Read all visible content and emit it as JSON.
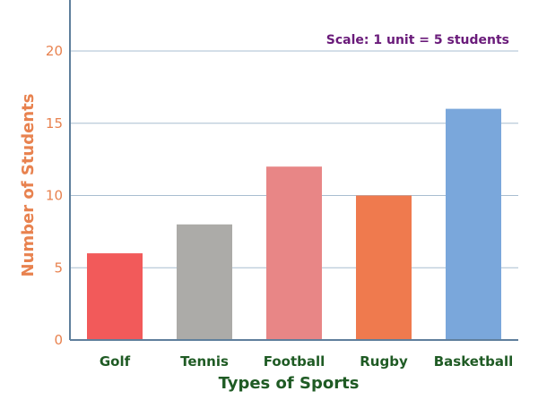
{
  "chart_data": {
    "type": "bar",
    "categories": [
      "Golf",
      "Tennis",
      "Football",
      "Rugby",
      "Basketball"
    ],
    "values": [
      6,
      8,
      12,
      10,
      16
    ],
    "bar_colors": [
      "#f25a5a",
      "#acaba8",
      "#e88686",
      "#ef7a4e",
      "#7aa7db"
    ],
    "xlabel": "Types of Sports",
    "ylabel": "Number of Students",
    "ylim": [
      0,
      20
    ],
    "yticks": [
      0,
      5,
      10,
      15,
      20
    ],
    "grid": true,
    "annotation": "Scale: 1 unit = 5 students"
  },
  "colors": {
    "axis": "#5f7f9c",
    "grid": "#a8bdd0",
    "y_text": "#e8824f",
    "x_text": "#1f5b24",
    "note_text": "#6a1b7a"
  }
}
